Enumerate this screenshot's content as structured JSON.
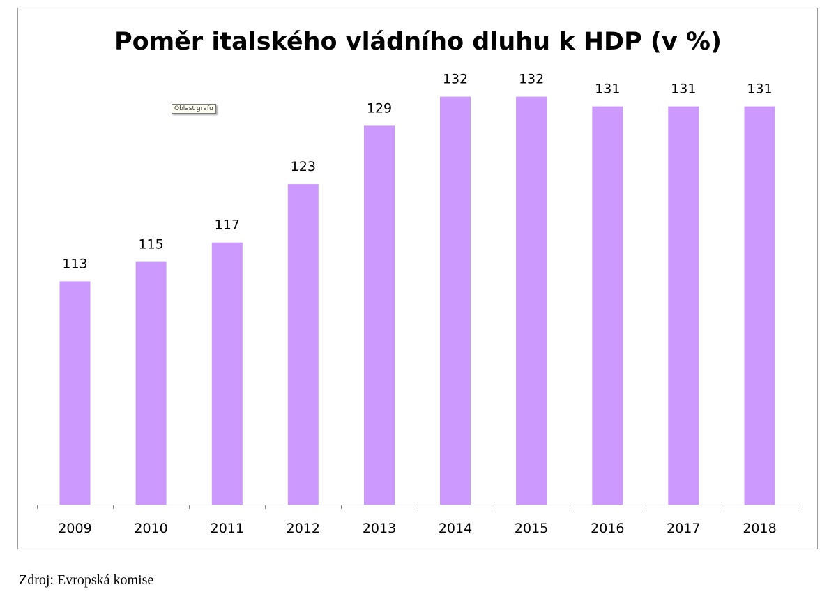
{
  "tooltip": "Oblast grafu",
  "source": "Zdroj: Evropská komise",
  "chart_data": {
    "type": "bar",
    "title": "Poměr italského vládního dluhu k HDP (v %)",
    "xlabel": "",
    "ylabel": "",
    "categories": [
      "2009",
      "2010",
      "2011",
      "2012",
      "2013",
      "2014",
      "2015",
      "2016",
      "2017",
      "2018"
    ],
    "values": [
      113,
      115,
      117,
      123,
      129,
      132,
      132,
      131,
      131,
      131
    ],
    "data_labels": [
      "113",
      "115",
      "117",
      "123",
      "129",
      "132",
      "132",
      "131",
      "131",
      "131"
    ],
    "ylim": [
      90,
      138
    ],
    "grid": false,
    "legend": "none",
    "bar_color": "#cc99ff"
  }
}
